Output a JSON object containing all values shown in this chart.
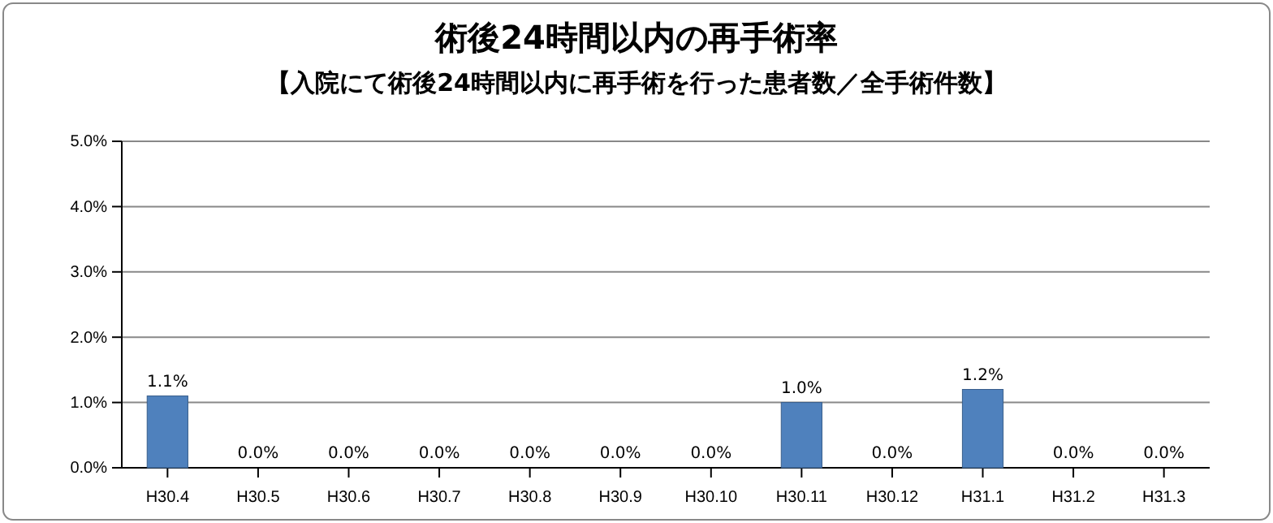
{
  "chart_data": {
    "type": "bar",
    "title": "術後24時間以内の再手術率",
    "subtitle": "【入院にて術後24時間以内に再手術を行った患者数／全手術件数】",
    "categories": [
      "H30.4",
      "H30.5",
      "H30.6",
      "H30.7",
      "H30.8",
      "H30.9",
      "H30.10",
      "H30.11",
      "H30.12",
      "H31.1",
      "H31.2",
      "H31.3"
    ],
    "values": [
      1.1,
      0,
      0,
      0,
      0,
      0,
      0,
      1.0,
      0,
      1.2,
      0,
      0
    ],
    "value_labels": [
      "1.1%",
      "0.0%",
      "0.0%",
      "0.0%",
      "0.0%",
      "0.0%",
      "0.0%",
      "1.0%",
      "0.0%",
      "1.2%",
      "0.0%",
      "0.0%"
    ],
    "color": "#4f81bd",
    "ylim": [
      0,
      5
    ],
    "yticks": [
      {
        "value": 0,
        "label": "0.0%"
      },
      {
        "value": 1,
        "label": "1.0%"
      },
      {
        "value": 2,
        "label": "2.0%"
      },
      {
        "value": 3,
        "label": "3.0%"
      },
      {
        "value": 4,
        "label": "4.0%"
      },
      {
        "value": 5,
        "label": "5.0%"
      }
    ],
    "grid": "y"
  }
}
